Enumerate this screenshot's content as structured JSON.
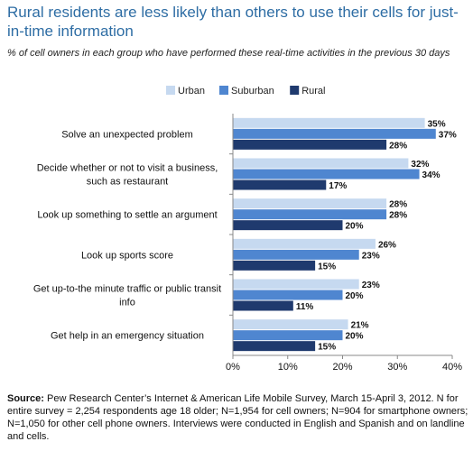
{
  "title": "Rural residents are less likely than others to use their cells for just-in-time information",
  "subtitle": "% of cell owners in each group who have performed these real-time activities in the previous 30 days",
  "source": {
    "label": "Source:",
    "text": " Pew Research Center’s Internet & American Life Mobile Survey, March 15-April 3, 2012. N for entire survey = 2,254 respondents age 18 older; N=1,954 for cell owners; N=904 for smartphone owners; N=1,050 for other cell phone owners. Interviews were conducted in English and Spanish and on landline and cells."
  },
  "chart_data": {
    "type": "bar",
    "orientation": "horizontal",
    "categories": [
      [
        "Solve an unexpected problem"
      ],
      [
        "Decide whether or not to visit a business,",
        "such as restaurant"
      ],
      [
        "Look up something to settle an argument"
      ],
      [
        "Look up sports score"
      ],
      [
        "Get up-to-the minute traffic or public transit",
        "info"
      ],
      [
        "Get help in an emergency situation"
      ]
    ],
    "series": [
      {
        "name": "Urban",
        "color": "#c6d9f0",
        "values": [
          35,
          32,
          28,
          26,
          23,
          21
        ],
        "labels": [
          "35%",
          "32%",
          "28%",
          "26%",
          "23%",
          "21%"
        ]
      },
      {
        "name": "Suburban",
        "color": "#4f86d0",
        "values": [
          37,
          34,
          28,
          23,
          20,
          20
        ],
        "labels": [
          "37%",
          "34%",
          "28%",
          "23%",
          "20%",
          "20%"
        ]
      },
      {
        "name": "Rural",
        "color": "#1f3a6e",
        "values": [
          28,
          17,
          20,
          15,
          11,
          15
        ],
        "labels": [
          "28%",
          "17%",
          "20%",
          "15%",
          "11%",
          "15%"
        ]
      }
    ],
    "xlim": [
      0,
      40
    ],
    "ticks": [
      "0%",
      "10%",
      "20%",
      "30%",
      "40%"
    ],
    "tick_values": [
      0,
      10,
      20,
      30,
      40
    ],
    "legend_position": "top-right",
    "grid": false
  }
}
